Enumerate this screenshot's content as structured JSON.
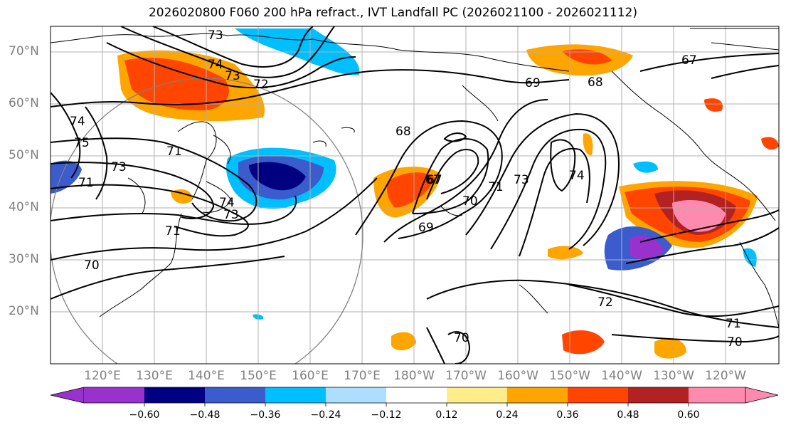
{
  "title": "2026020800 F060 200 hPa refract., IVT Landfall PC (2026021100 - 2026021112)",
  "lat_labels": [
    "70°N",
    "60°N",
    "50°N",
    "40°N",
    "30°N",
    "20°N"
  ],
  "lon_labels": [
    "120°E",
    "130°E",
    "140°E",
    "150°E",
    "160°E",
    "170°E",
    "180°W",
    "170°W",
    "160°W",
    "150°W",
    "140°W",
    "130°W",
    "120°W"
  ],
  "contour_labels": [
    "73",
    "74",
    "73",
    "72",
    "67",
    "68",
    "69",
    "74",
    "75",
    "73",
    "71",
    "71",
    "74",
    "73",
    "71",
    "70",
    "68",
    "67",
    "69",
    "70",
    "71",
    "73",
    "74",
    "67",
    "72",
    "71",
    "70",
    "70"
  ],
  "colorbar": {
    "ticks": [
      "−0.60",
      "−0.48",
      "−0.36",
      "−0.24",
      "−0.12",
      "0.12",
      "0.24",
      "0.36",
      "0.48",
      "0.60"
    ],
    "colors": [
      "#9932CC",
      "#000080",
      "#3A5CCC",
      "#00BFFF",
      "#ADDEFF",
      "#FFFFFF",
      "#FFEC8B",
      "#FFA500",
      "#FF4500",
      "#B22222",
      "#FF8AB0"
    ]
  }
}
